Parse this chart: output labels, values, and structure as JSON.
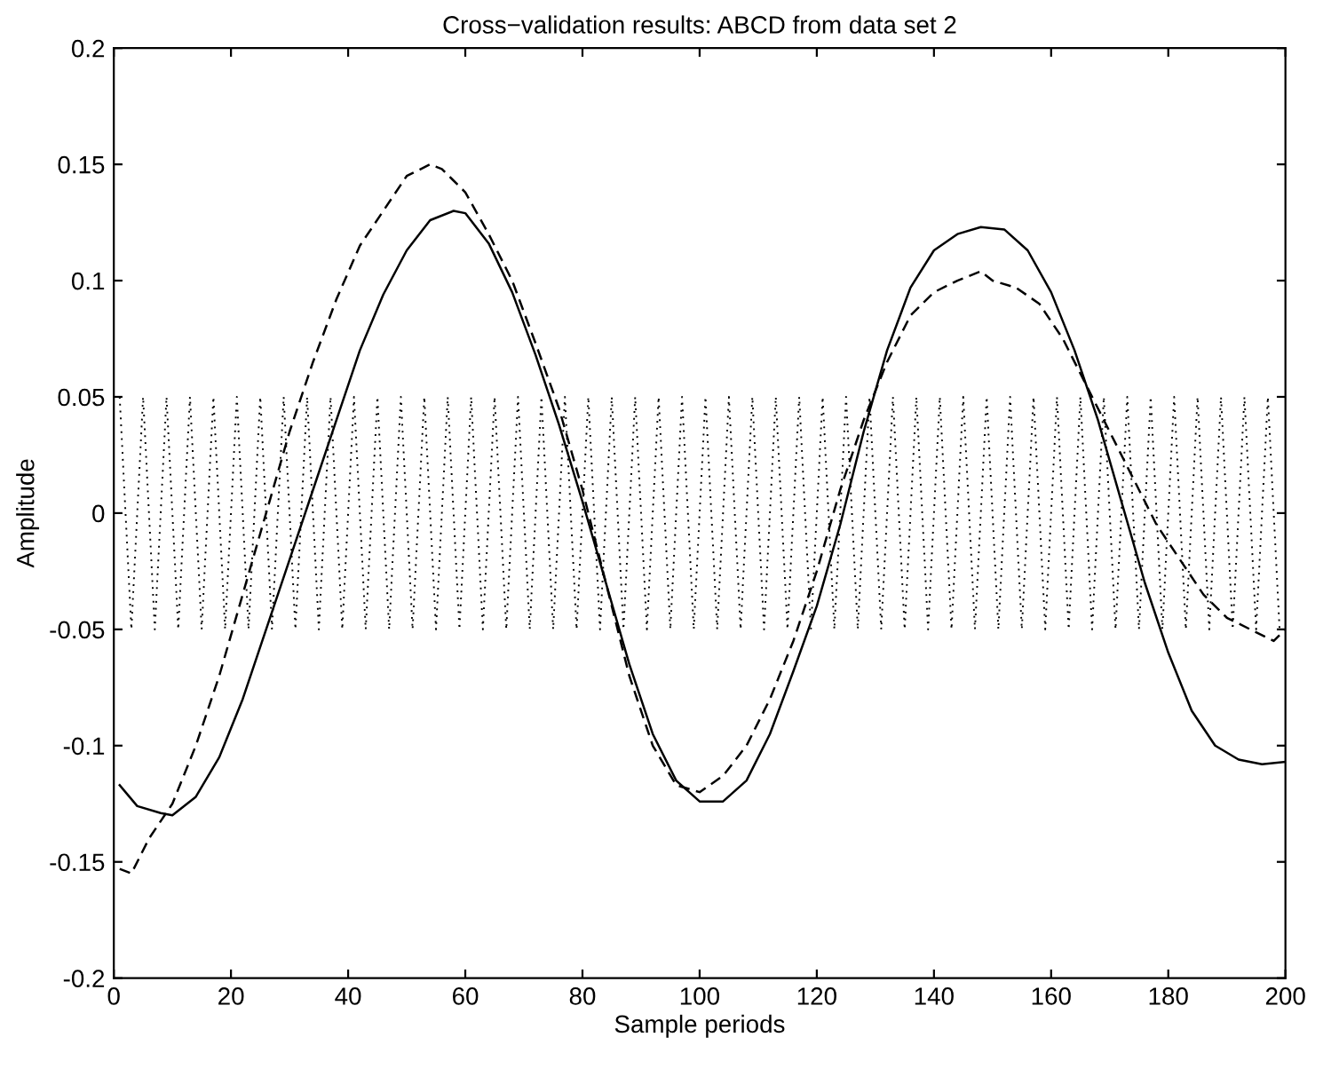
{
  "chart_data": {
    "type": "line",
    "title": "Cross−validation results: ABCD from data set 2",
    "xlabel": "Sample periods",
    "ylabel": "Amplitude",
    "xlim": [
      0,
      200
    ],
    "xticks": [
      0,
      20,
      40,
      60,
      80,
      100,
      120,
      140,
      160,
      180,
      200
    ],
    "ylim": [
      -0.2,
      0.2
    ],
    "yticks": [
      -0.2,
      -0.15,
      -0.1,
      -0.05,
      0,
      0.05,
      0.1,
      0.15,
      0.2
    ],
    "grid": false,
    "series": [
      {
        "color": "#000000",
        "line_style": "dotted",
        "x": [
          1,
          3,
          5,
          7,
          9,
          11,
          13,
          15,
          17,
          19,
          21,
          23,
          25,
          27,
          29,
          31,
          33,
          35,
          37,
          39,
          41,
          43,
          45,
          47,
          49,
          51,
          53,
          55,
          57,
          59,
          61,
          63,
          65,
          67,
          69,
          71,
          73,
          75,
          77,
          79,
          81,
          83,
          85,
          87,
          89,
          91,
          93,
          95,
          97,
          99,
          101,
          103,
          105,
          107,
          109,
          111,
          113,
          115,
          117,
          119,
          121,
          123,
          125,
          127,
          129,
          131,
          133,
          135,
          137,
          139,
          141,
          143,
          145,
          147,
          149,
          151,
          153,
          155,
          157,
          159,
          161,
          163,
          165,
          167,
          169,
          171,
          173,
          175,
          177,
          179,
          181,
          183,
          185,
          187,
          189,
          191,
          193,
          195,
          197,
          199
        ],
        "values": [
          0.05,
          -0.05,
          0.05,
          -0.05,
          0.05,
          -0.05,
          0.05,
          -0.05,
          0.05,
          -0.05,
          0.05,
          -0.05,
          0.05,
          -0.05,
          0.05,
          -0.05,
          0.05,
          -0.05,
          0.05,
          -0.05,
          0.05,
          -0.05,
          0.05,
          -0.05,
          0.05,
          -0.05,
          0.05,
          -0.05,
          0.05,
          -0.05,
          0.05,
          -0.05,
          0.05,
          -0.05,
          0.05,
          -0.05,
          0.05,
          -0.05,
          0.05,
          -0.05,
          0.05,
          -0.05,
          0.05,
          -0.05,
          0.05,
          -0.05,
          0.05,
          -0.05,
          0.05,
          -0.05,
          0.05,
          -0.05,
          0.05,
          -0.05,
          0.05,
          -0.05,
          0.05,
          -0.05,
          0.05,
          -0.05,
          0.05,
          -0.05,
          0.05,
          -0.05,
          0.05,
          -0.05,
          0.05,
          -0.05,
          0.05,
          -0.05,
          0.05,
          -0.05,
          0.05,
          -0.05,
          0.05,
          -0.05,
          0.05,
          -0.05,
          0.05,
          -0.05,
          0.05,
          -0.05,
          0.05,
          -0.05,
          0.05,
          -0.05,
          0.05,
          -0.05,
          0.05,
          -0.05,
          0.05,
          -0.05,
          0.05,
          -0.05,
          0.05,
          -0.05,
          0.05,
          -0.05,
          0.05,
          -0.05
        ]
      },
      {
        "color": "#000000",
        "line_style": "solid",
        "x": [
          1,
          4,
          8,
          10,
          14,
          18,
          22,
          26,
          30,
          34,
          38,
          42,
          46,
          50,
          54,
          58,
          60,
          64,
          68,
          72,
          76,
          80,
          84,
          88,
          92,
          96,
          100,
          104,
          108,
          112,
          116,
          120,
          124,
          128,
          132,
          136,
          140,
          144,
          148,
          152,
          156,
          160,
          164,
          168,
          172,
          176,
          180,
          184,
          188,
          192,
          196,
          200
        ],
        "values": [
          -0.117,
          -0.126,
          -0.129,
          -0.13,
          -0.122,
          -0.105,
          -0.08,
          -0.05,
          -0.02,
          0.01,
          0.04,
          0.07,
          0.094,
          0.113,
          0.126,
          0.13,
          0.129,
          0.116,
          0.095,
          0.068,
          0.038,
          0.005,
          -0.03,
          -0.065,
          -0.095,
          -0.115,
          -0.124,
          -0.124,
          -0.115,
          -0.095,
          -0.068,
          -0.04,
          -0.005,
          0.035,
          0.07,
          0.097,
          0.113,
          0.12,
          0.123,
          0.122,
          0.113,
          0.095,
          0.07,
          0.04,
          0.005,
          -0.03,
          -0.06,
          -0.085,
          -0.1,
          -0.106,
          -0.108,
          -0.107
        ]
      },
      {
        "color": "#000000",
        "line_style": "dashed",
        "x": [
          1,
          3,
          6,
          10,
          14,
          18,
          22,
          26,
          30,
          34,
          38,
          42,
          46,
          50,
          54,
          56,
          60,
          64,
          68,
          72,
          76,
          80,
          84,
          88,
          92,
          96,
          100,
          104,
          108,
          112,
          116,
          120,
          124,
          128,
          132,
          136,
          140,
          144,
          148,
          150,
          154,
          158,
          162,
          166,
          170,
          174,
          178,
          182,
          186,
          190,
          194,
          198,
          200
        ],
        "values": [
          -0.153,
          -0.155,
          -0.14,
          -0.125,
          -0.1,
          -0.07,
          -0.035,
          0.0,
          0.035,
          0.065,
          0.092,
          0.115,
          0.13,
          0.145,
          0.15,
          0.148,
          0.138,
          0.12,
          0.1,
          0.073,
          0.045,
          0.01,
          -0.03,
          -0.07,
          -0.1,
          -0.117,
          -0.12,
          -0.113,
          -0.1,
          -0.08,
          -0.055,
          -0.025,
          0.01,
          0.04,
          0.065,
          0.085,
          0.095,
          0.1,
          0.104,
          0.1,
          0.097,
          0.09,
          0.075,
          0.055,
          0.035,
          0.015,
          -0.005,
          -0.02,
          -0.035,
          -0.045,
          -0.05,
          -0.055,
          -0.05
        ]
      }
    ]
  }
}
